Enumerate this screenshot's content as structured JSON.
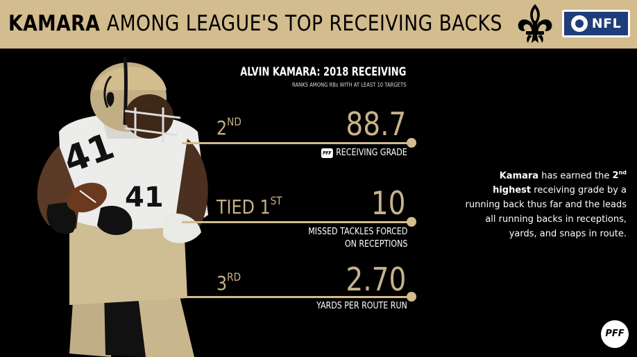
{
  "header": {
    "title_strong": "KAMARA",
    "title_rest": "AMONG LEAGUE'S TOP RECEIVING BACKS",
    "team_logo": "saints-fleur-de-lis",
    "network_logo": "cbs-eye",
    "network_label": "NFL"
  },
  "section": {
    "title": "ALVIN KAMARA: 2018 RECEIVING",
    "subtitle": "RANKS AMONG RBs WITH AT LEAST 10 TARGETS"
  },
  "stats": [
    {
      "rank_main": "2",
      "rank_suffix": "ND",
      "value": "88.7",
      "metric": "RECEIVING GRADE",
      "metric_line2": "",
      "badge": "PFF"
    },
    {
      "rank_main": "TIED 1",
      "rank_suffix": "ST",
      "value": "10",
      "metric": "MISSED TACKLES FORCED",
      "metric_line2": "ON RECEPTIONS",
      "badge": ""
    },
    {
      "rank_main": "3",
      "rank_suffix": "RD",
      "value": "2.70",
      "metric": "YARDS PER ROUTE RUN",
      "metric_line2": "",
      "badge": ""
    }
  ],
  "note": {
    "name": "Kamara",
    "part1": "has earned the",
    "ordinal_num": "2",
    "ordinal_suffix": "nd",
    "emphasis": "highest",
    "part2": "receiving grade by a running back thus far and the leads all running backs in receptions, yards, and snaps in route."
  },
  "footer": {
    "logo_label": "PFF"
  },
  "colors": {
    "gold": "#d3bc8d",
    "value_gold": "#c8b18a",
    "background": "#000000",
    "network_blue": "#1f3d7a"
  }
}
